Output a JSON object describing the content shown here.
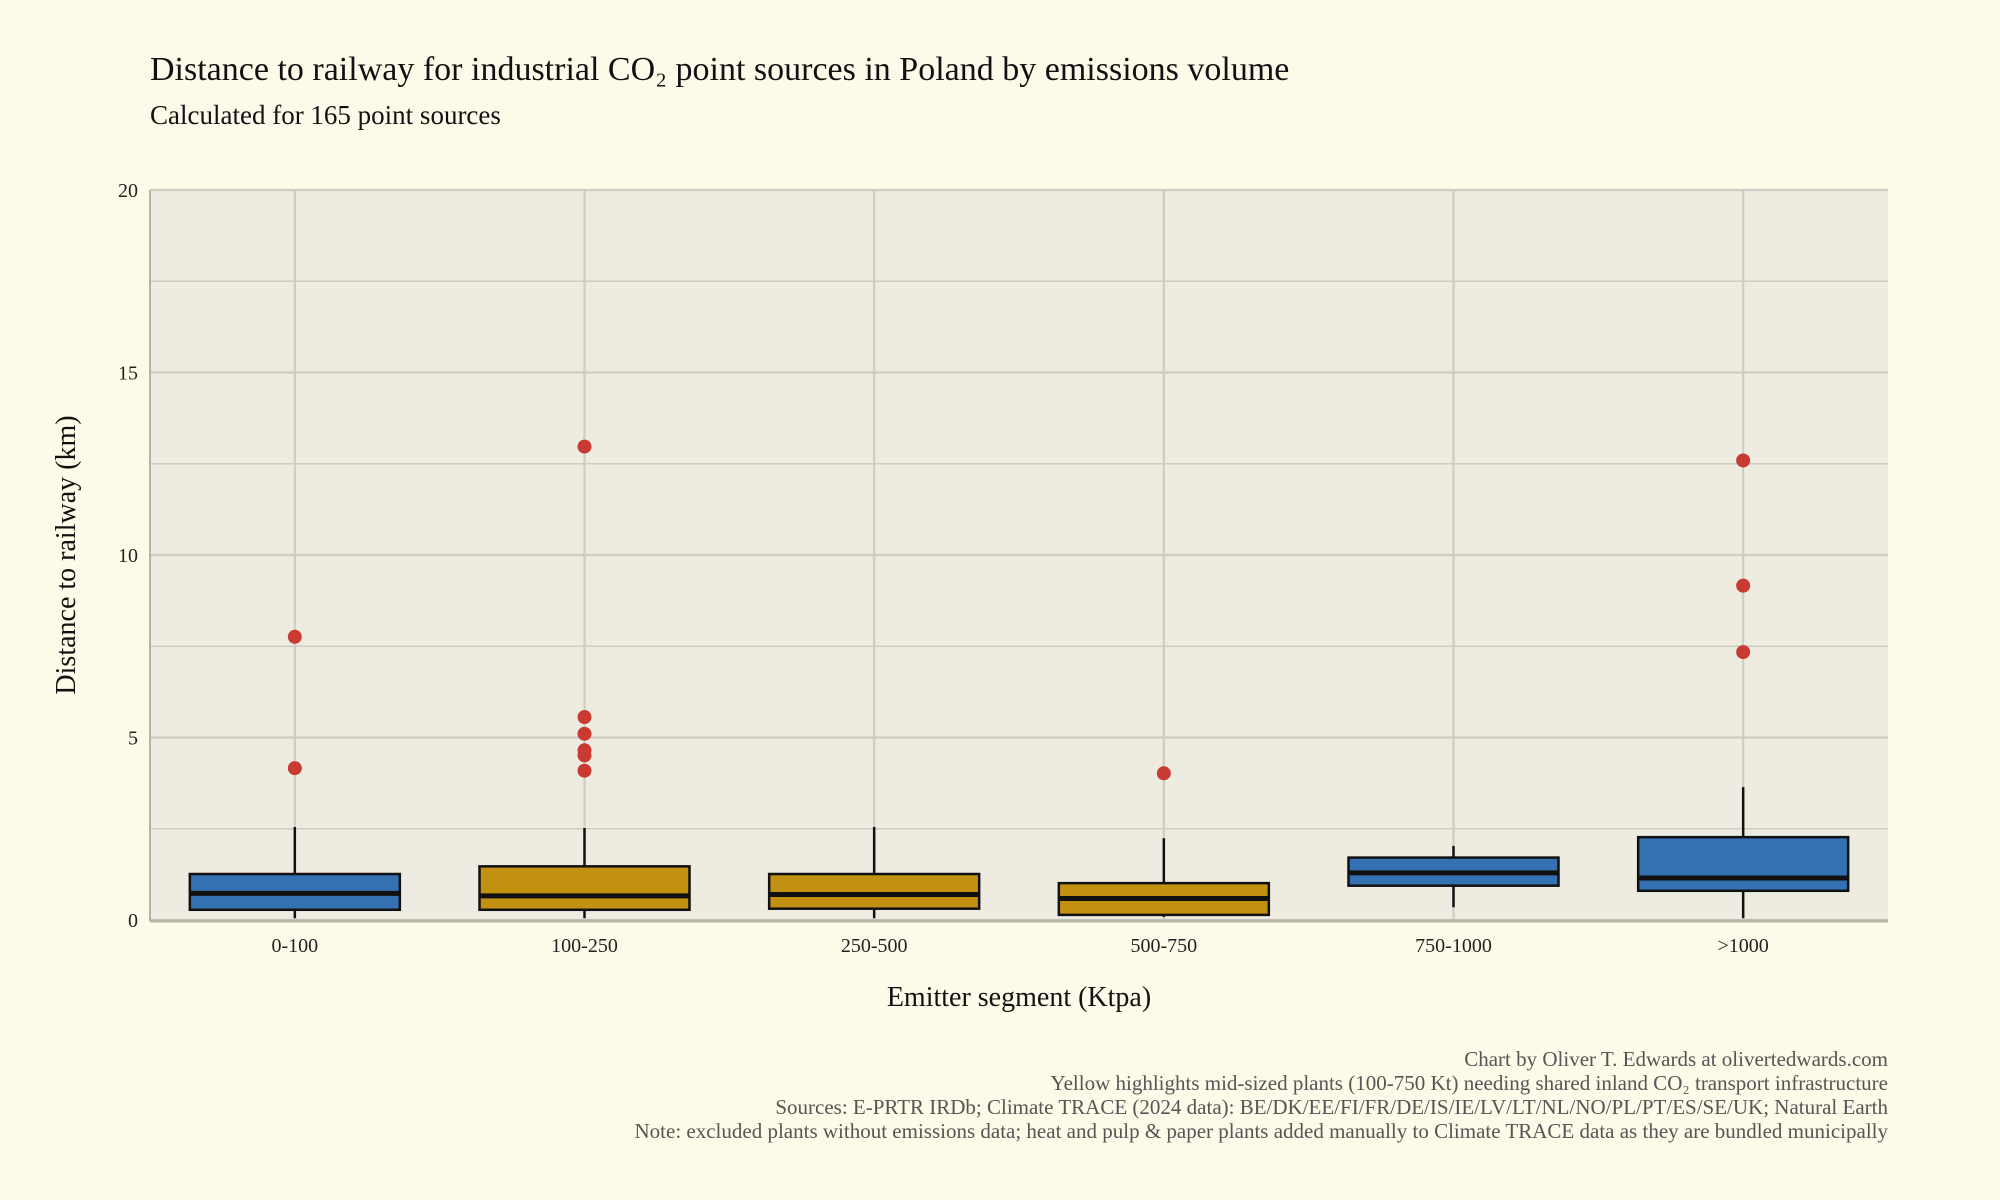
{
  "chart_data": {
    "type": "box",
    "title": "Distance to railway for industrial CO₂ point sources in Poland by emissions volume",
    "subtitle": "Calculated for 165 point sources",
    "xlabel": "Emitter segment (Ktpa)",
    "ylabel": "Distance to railway (km)",
    "ylim": [
      0,
      20
    ],
    "yticks": [
      "0",
      "5",
      "10",
      "15",
      "20"
    ],
    "grid": true,
    "categories": [
      "0-100",
      "100-250",
      "250-500",
      "500-750",
      "750-1000",
      ">1000"
    ],
    "highlight": [
      false,
      true,
      true,
      true,
      false,
      false
    ],
    "boxes": [
      {
        "low": 0.05,
        "q1": 0.28,
        "median": 0.73,
        "q3": 1.26,
        "high": 2.55,
        "outliers": [
          7.76,
          4.16
        ]
      },
      {
        "low": 0.05,
        "q1": 0.28,
        "median": 0.66,
        "q3": 1.47,
        "high": 2.52,
        "outliers": [
          12.97,
          5.56,
          5.1,
          4.65,
          4.51,
          4.09
        ]
      },
      {
        "low": 0.05,
        "q1": 0.31,
        "median": 0.7,
        "q3": 1.26,
        "high": 2.55,
        "outliers": []
      },
      {
        "low": 0.08,
        "q1": 0.14,
        "median": 0.59,
        "q3": 1.01,
        "high": 2.24,
        "outliers": [
          4.02
        ]
      },
      {
        "low": 0.35,
        "q1": 0.94,
        "median": 1.29,
        "q3": 1.71,
        "high": 2.03,
        "outliers": []
      },
      {
        "low": 0.05,
        "q1": 0.8,
        "median": 1.15,
        "q3": 2.27,
        "high": 3.64,
        "outliers": [
          12.59,
          9.16,
          7.34
        ]
      }
    ],
    "colors": {
      "default": "#3471b0",
      "highlight": "#c29112",
      "outlier": "#c83a32",
      "panel": "#eeebe0",
      "background": "#fefae9"
    },
    "captions": [
      "Chart by Oliver T. Edwards at olivertedwards.com",
      "Yellow highlights mid-sized plants (100-750 Kt) needing shared inland CO₂ transport infrastructure",
      "Sources: E-PRTR IRDb; Climate TRACE (2024 data): BE/DK/EE/FI/FR/DE/IS/IE/LV/LT/NL/NO/PL/PT/ES/SE/UK; Natural Earth",
      "Note: excluded plants without emissions data; heat and pulp & paper plants added manually to Climate TRACE data as they are bundled municipally"
    ]
  }
}
